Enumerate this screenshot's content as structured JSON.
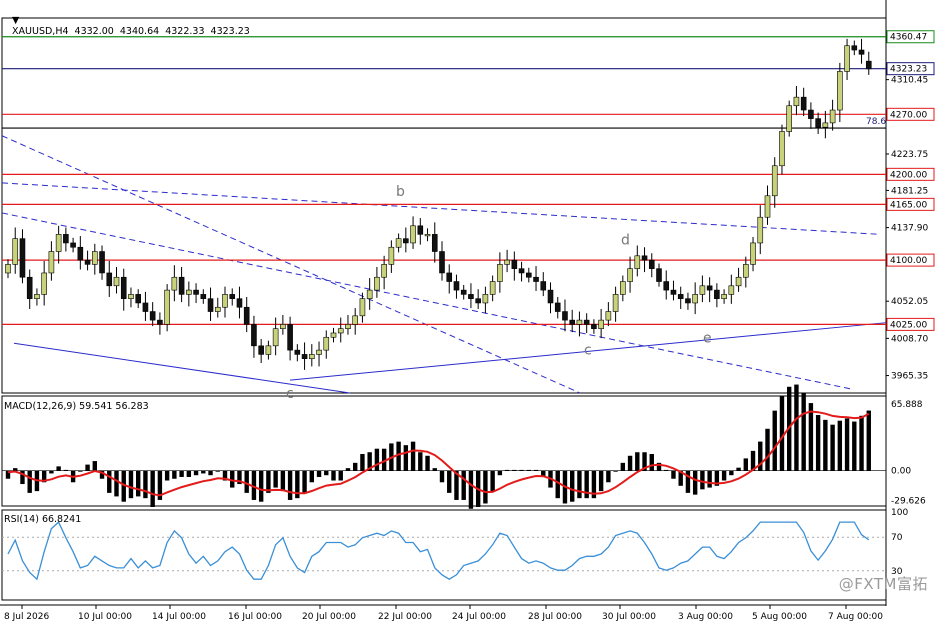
{
  "header": {
    "symbol_line": "XAUUSD,H4  4332.00  4340.64  4322.33  4323.23",
    "macd_label": "MACD(12,26,9) 59.541 56.283",
    "rsi_label": "RSI(14) 66.8241"
  },
  "watermark": "@FXTM富拓",
  "colors": {
    "bull": "#c8d27a",
    "bear": "#111111",
    "support_line": "#e31b1b",
    "green_line": "#1a8c1a",
    "blue_line": "#2b2bcc",
    "macd_signal": "#e31b1b",
    "rsi_line": "#3a8fd6"
  },
  "chart_data": [
    {
      "type": "candlestick",
      "title": "XAUUSD,H4",
      "ohlc_last": {
        "open": 4332.0,
        "high": 4340.64,
        "low": 4322.33,
        "close": 4323.23
      },
      "ylim": [
        3945,
        4380
      ],
      "y_ticks": [
        "4360.47",
        "4323.23",
        "4310.45",
        "4270.00",
        "4223.75",
        "4200.00",
        "4181.25",
        "4165.00",
        "4137.90",
        "4100.00",
        "4052.05",
        "4025.00",
        "4008.70",
        "3965.35"
      ],
      "x_ticks": [
        "8 Jul 2026",
        "10 Jul 00:00",
        "14 Jul 00:00",
        "16 Jul 00:00",
        "20 Jul 00:00",
        "22 Jul 00:00",
        "24 Jul 00:00",
        "28 Jul 00:00",
        "30 Jul 00:00",
        "3 Aug 00:00",
        "5 Aug 00:00",
        "7 Aug 00:00"
      ],
      "horizontal_levels": [
        {
          "value": 4360.47,
          "label": "4360.47",
          "color": "green"
        },
        {
          "value": 4323.23,
          "label": "4323.23",
          "color": "navy"
        },
        {
          "value": 4270.0,
          "label": "4270.00",
          "color": "red"
        },
        {
          "value": 4254.0,
          "label": "78.6",
          "color": "black"
        },
        {
          "value": 4200.0,
          "label": "4200.00",
          "color": "red"
        },
        {
          "value": 4165.0,
          "label": "4165.00",
          "color": "red"
        },
        {
          "value": 4100.0,
          "label": "4100.00",
          "color": "red"
        },
        {
          "value": 4025.0,
          "label": "4025.00",
          "color": "red"
        }
      ],
      "wave_labels": [
        "b",
        "c",
        "d",
        "e"
      ],
      "closes": [
        4095,
        4125,
        4080,
        4055,
        4060,
        4085,
        4110,
        4130,
        4120,
        4115,
        4100,
        4095,
        4110,
        4085,
        4070,
        4080,
        4055,
        4060,
        4050,
        4040,
        4030,
        4025,
        4065,
        4080,
        4060,
        4065,
        4060,
        4055,
        4040,
        4045,
        4060,
        4055,
        4045,
        4025,
        4000,
        3990,
        4000,
        4020,
        4025,
        3995,
        3990,
        3985,
        3990,
        3995,
        4010,
        4015,
        4020,
        4025,
        4035,
        4055,
        4065,
        4080,
        4095,
        4115,
        4125,
        4120,
        4140,
        4130,
        4130,
        4110,
        4085,
        4075,
        4065,
        4060,
        4055,
        4050,
        4060,
        4075,
        4095,
        4100,
        4090,
        4085,
        4080,
        4075,
        4065,
        4050,
        4040,
        4030,
        4025,
        4030,
        4025,
        4020,
        4030,
        4040,
        4060,
        4075,
        4090,
        4105,
        4100,
        4090,
        4075,
        4065,
        4060,
        4055,
        4050,
        4060,
        4070,
        4065,
        4055,
        4060,
        4070,
        4080,
        4095,
        4120,
        4150,
        4175,
        4210,
        4250,
        4280,
        4290,
        4275,
        4265,
        4255,
        4260,
        4275,
        4320,
        4350,
        4345,
        4340,
        4323
      ],
      "macd_histogram_ylim": [
        -35,
        70
      ],
      "macd_ticks": [
        "65.888",
        "0.00",
        "-29.626"
      ],
      "rsi_ticks": [
        "100",
        "70",
        "30"
      ],
      "rsi_last": 66.8241,
      "macd_last": 59.541,
      "signal_last": 56.283
    }
  ]
}
